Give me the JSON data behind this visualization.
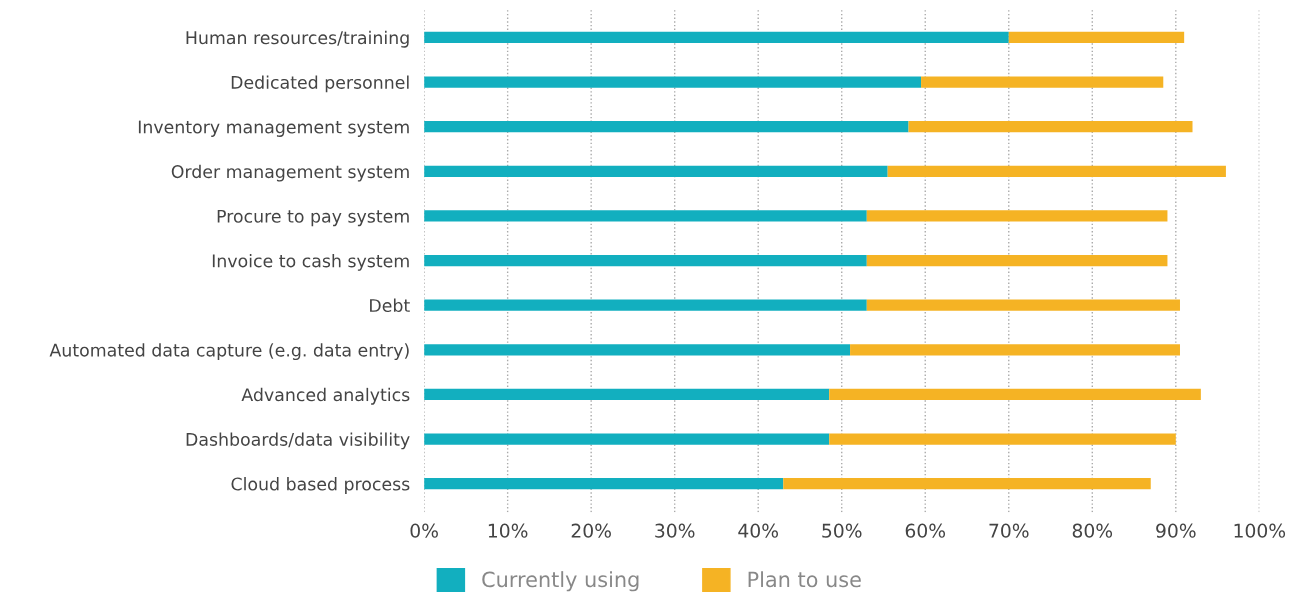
{
  "chart_data": {
    "type": "bar",
    "orientation": "horizontal",
    "stacked": true,
    "categories": [
      "Human resources/training",
      "Dedicated personnel",
      "Inventory management system",
      "Order management system",
      "Procure to pay system",
      "Invoice to cash system",
      "Debt",
      "Automated data capture (e.g. data entry)",
      "Advanced analytics",
      "Dashboards/data visibility",
      "Cloud based process"
    ],
    "series": [
      {
        "name": "Currently using",
        "color": "#12afbf",
        "values": [
          70,
          59.5,
          58,
          55.5,
          53,
          53,
          53,
          51,
          48.5,
          48.5,
          43
        ]
      },
      {
        "name": "Plan to use",
        "color": "#f5b324",
        "values": [
          21,
          29,
          34,
          40.5,
          36,
          36,
          37.5,
          39.5,
          44.5,
          41.5,
          44
        ]
      }
    ],
    "xlim": [
      0,
      100
    ],
    "xticks": [
      {
        "value": 0,
        "label": "0%"
      },
      {
        "value": 10,
        "label": "10%"
      },
      {
        "value": 20,
        "label": "20%"
      },
      {
        "value": 30,
        "label": "30%"
      },
      {
        "value": 40,
        "label": "40%"
      },
      {
        "value": 50,
        "label": "50%"
      },
      {
        "value": 60,
        "label": "60%"
      },
      {
        "value": 70,
        "label": "70%"
      },
      {
        "value": 80,
        "label": "80%"
      },
      {
        "value": 90,
        "label": "90%"
      },
      {
        "value": 100,
        "label": "100%"
      }
    ],
    "grid": "x",
    "legend": "bottom"
  }
}
